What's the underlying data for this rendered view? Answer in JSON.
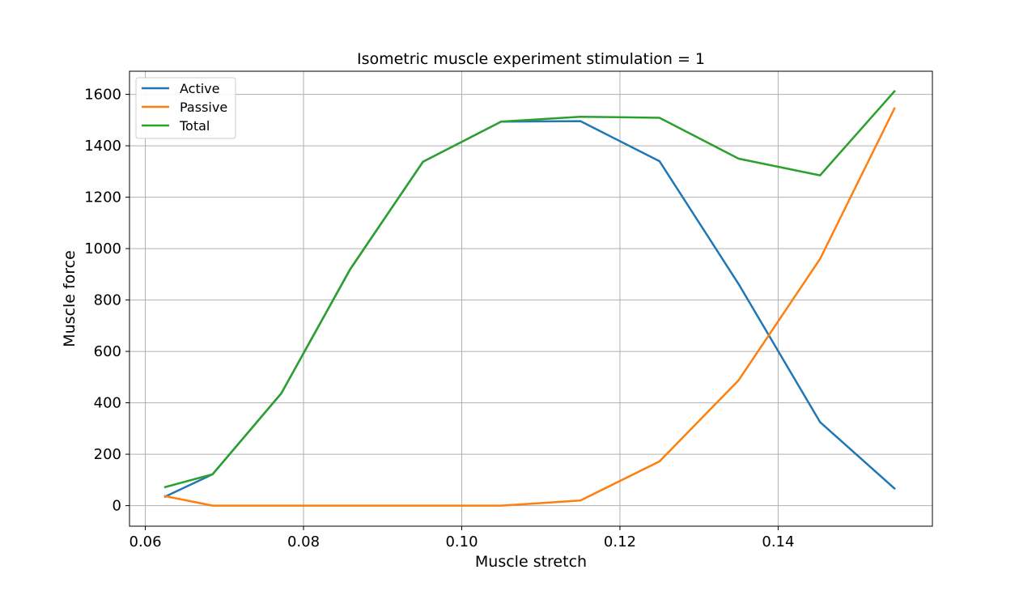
{
  "chart_data": {
    "type": "line",
    "title": "Isometric muscle experiment stimulation = 1",
    "xlabel": "Muscle stretch",
    "ylabel": "Muscle force",
    "xlim": [
      0.058,
      0.1595
    ],
    "ylim": [
      -80,
      1690
    ],
    "xticks": [
      0.06,
      0.08,
      0.1,
      0.12,
      0.14
    ],
    "xtick_labels": [
      "0.06",
      "0.08",
      "0.10",
      "0.12",
      "0.14"
    ],
    "yticks": [
      0,
      200,
      400,
      600,
      800,
      1000,
      1200,
      1400,
      1600
    ],
    "ytick_labels": [
      "0",
      "200",
      "400",
      "600",
      "800",
      "1000",
      "1200",
      "1400",
      "1600"
    ],
    "grid": true,
    "legend_position": "top-left",
    "x": [
      0.0625,
      0.0685,
      0.0772,
      0.0859,
      0.0951,
      0.105,
      0.115,
      0.125,
      0.135,
      0.1453,
      0.1547
    ],
    "series": [
      {
        "name": "Active",
        "color": "#1f77b4",
        "values": [
          35,
          122,
          437,
          920,
          1338,
          1494,
          1496,
          1340,
          862,
          325,
          67
        ]
      },
      {
        "name": "Passive",
        "color": "#ff7f0e",
        "values": [
          37,
          0,
          0,
          0,
          0,
          0,
          20,
          172,
          488,
          960,
          1545
        ]
      },
      {
        "name": "Total",
        "color": "#2ca02c",
        "values": [
          72,
          122,
          437,
          920,
          1338,
          1494,
          1513,
          1509,
          1350,
          1285,
          1612
        ]
      }
    ]
  }
}
